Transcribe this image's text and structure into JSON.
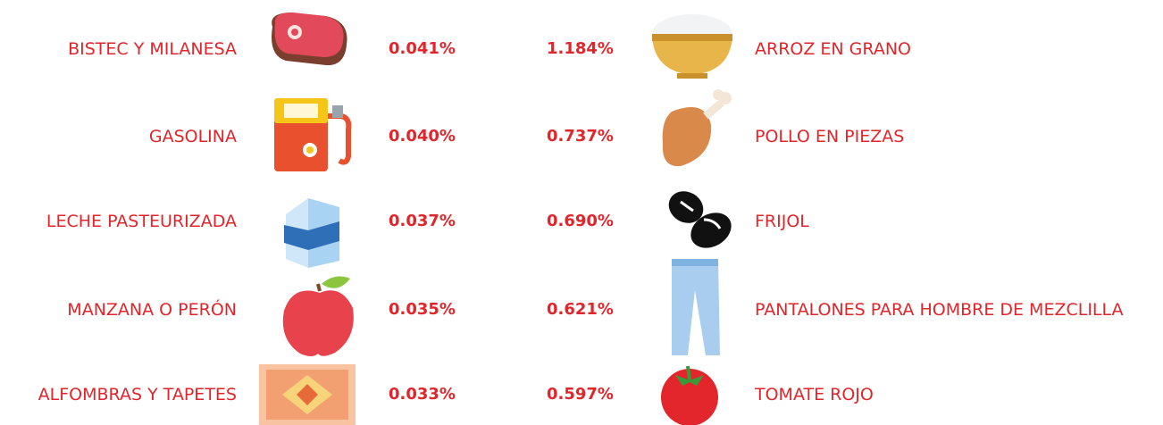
{
  "left": [
    {
      "label": "BISTEC Y MILANESA",
      "value": "0.041%"
    },
    {
      "label": "GASOLINA",
      "value": "0.040%"
    },
    {
      "label": "LECHE PASTEURIZADA",
      "value": "0.037%"
    },
    {
      "label": "MANZANA O PERÓN",
      "value": "0.035%"
    },
    {
      "label": "ALFOMBRAS Y TAPETES",
      "value": "0.033%"
    }
  ],
  "right": [
    {
      "label": "ARROZ EN GRANO",
      "value": "1.184%"
    },
    {
      "label": "POLLO EN PIEZAS",
      "value": "0.737%"
    },
    {
      "label": "FRIJOL",
      "value": "0.690%"
    },
    {
      "label": "PANTALONES PARA HOMBRE DE MEZCLILLA",
      "value": "0.621%"
    },
    {
      "label": "TOMATE ROJO",
      "value": "0.597%"
    }
  ]
}
